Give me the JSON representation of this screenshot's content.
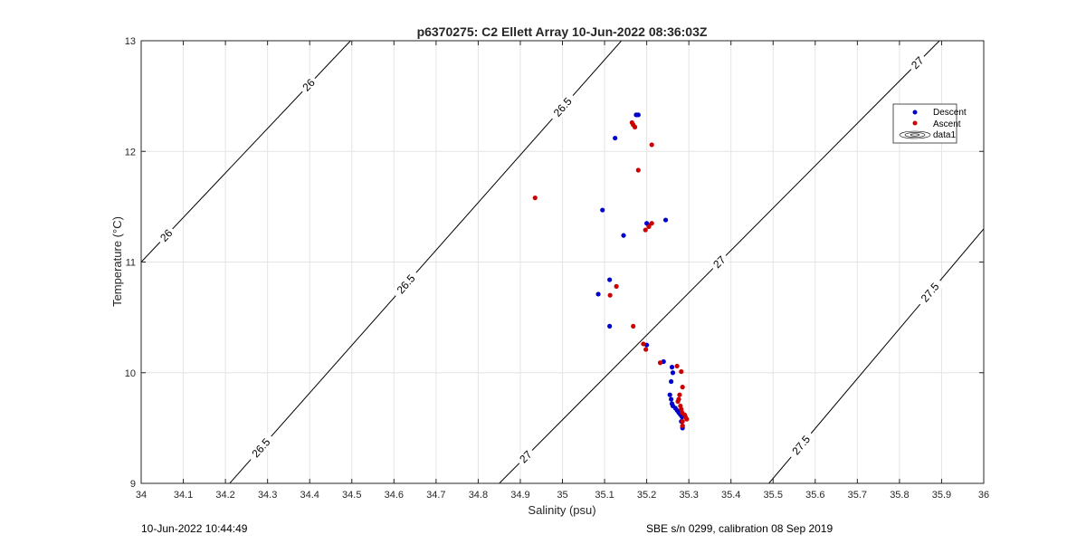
{
  "chart_data": {
    "type": "scatter",
    "title": "p6370275: C2 Ellett Array 10-Jun-2022 08:36:03Z",
    "xlabel": "Salinity (psu)",
    "ylabel": "Temperature (°C)",
    "xlim": [
      34,
      36
    ],
    "ylim": [
      9,
      13
    ],
    "x_ticks": [
      "34",
      "34.1",
      "34.2",
      "34.3",
      "34.4",
      "34.5",
      "34.6",
      "34.7",
      "34.8",
      "34.9",
      "35",
      "35.1",
      "35.2",
      "35.3",
      "35.4",
      "35.5",
      "35.6",
      "35.7",
      "35.8",
      "35.9",
      "36"
    ],
    "y_ticks": [
      "9",
      "10",
      "11",
      "12",
      "13"
    ],
    "grid": true,
    "legend_position": "top-right",
    "series": [
      {
        "name": "Descent",
        "color": "#0000cc",
        "points": [
          [
            35.175,
            12.33
          ],
          [
            35.18,
            12.33
          ],
          [
            35.125,
            12.12
          ],
          [
            35.095,
            11.47
          ],
          [
            35.145,
            11.24
          ],
          [
            35.2,
            11.35
          ],
          [
            35.245,
            11.38
          ],
          [
            35.205,
            11.33
          ],
          [
            35.112,
            10.84
          ],
          [
            35.085,
            10.71
          ],
          [
            35.112,
            10.42
          ],
          [
            35.2,
            10.25
          ],
          [
            35.24,
            10.1
          ],
          [
            35.26,
            10.05
          ],
          [
            35.262,
            10.0
          ],
          [
            35.258,
            9.92
          ],
          [
            35.255,
            9.8
          ],
          [
            35.258,
            9.76
          ],
          [
            35.26,
            9.72
          ],
          [
            35.262,
            9.7
          ],
          [
            35.268,
            9.68
          ],
          [
            35.272,
            9.66
          ],
          [
            35.276,
            9.64
          ],
          [
            35.28,
            9.62
          ],
          [
            35.284,
            9.6
          ],
          [
            35.282,
            9.56
          ],
          [
            35.285,
            9.52
          ],
          [
            35.285,
            9.5
          ]
        ]
      },
      {
        "name": "Ascent",
        "color": "#cc0000",
        "points": [
          [
            35.165,
            12.26
          ],
          [
            35.168,
            12.24
          ],
          [
            35.172,
            12.22
          ],
          [
            35.212,
            12.06
          ],
          [
            35.18,
            11.83
          ],
          [
            34.935,
            11.58
          ],
          [
            35.197,
            11.29
          ],
          [
            35.205,
            11.32
          ],
          [
            35.212,
            11.35
          ],
          [
            35.128,
            10.78
          ],
          [
            35.113,
            10.7
          ],
          [
            35.168,
            10.42
          ],
          [
            35.192,
            10.26
          ],
          [
            35.198,
            10.21
          ],
          [
            35.232,
            10.09
          ],
          [
            35.272,
            10.06
          ],
          [
            35.282,
            10.01
          ],
          [
            35.285,
            9.87
          ],
          [
            35.278,
            9.8
          ],
          [
            35.276,
            9.76
          ],
          [
            35.274,
            9.74
          ],
          [
            35.28,
            9.7
          ],
          [
            35.282,
            9.67
          ],
          [
            35.284,
            9.64
          ],
          [
            35.29,
            9.62
          ],
          [
            35.292,
            9.6
          ],
          [
            35.295,
            9.58
          ],
          [
            35.285,
            9.56
          ],
          [
            35.285,
            9.52
          ]
        ]
      },
      {
        "name": "data1",
        "type": "contour",
        "color": "#000000",
        "levels": [
          {
            "label": "26",
            "points": [
              [
                34.0,
                11.0
              ],
              [
                34.497,
                13.0
              ]
            ]
          },
          {
            "label": "26.5",
            "points": [
              [
                34.21,
                9.0
              ],
              [
                35.14,
                13.0
              ]
            ]
          },
          {
            "label": "27",
            "points": [
              [
                34.85,
                9.0
              ],
              [
                35.895,
                13.0
              ]
            ]
          },
          {
            "label": "27.5",
            "points": [
              [
                35.49,
                9.0
              ],
              [
                36.0,
                11.3
              ]
            ]
          }
        ]
      }
    ]
  },
  "footer": {
    "left": "10-Jun-2022 10:44:49",
    "right": "SBE s/n 0299, calibration 08 Sep 2019"
  }
}
